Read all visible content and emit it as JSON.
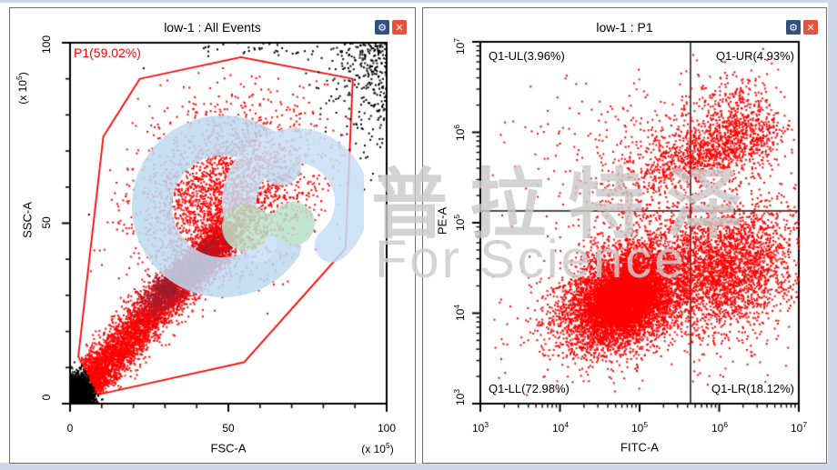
{
  "window": {
    "chrome_color": "#cdd8e9",
    "panel_bg": "#ffffff"
  },
  "icons": {
    "settings_glyph": "⚙",
    "close_glyph": "✕",
    "settings_bg": "#31507c",
    "close_bg": "#e8513e"
  },
  "watermark": {
    "cjk": "普拉特泽",
    "latin": "For Science",
    "text_color": "#c9c9c9",
    "logo_blue": "#bedaf1",
    "logo_green": "#b9e2cb"
  },
  "chart_data": [
    {
      "type": "scatter",
      "title": "low-1 : All Events",
      "xlabel": "FSC-A",
      "ylabel": "SSC-A",
      "x_unit": {
        "pre": "(x 10",
        "exp": "5",
        "post": ")"
      },
      "y_unit": {
        "pre": "(x 10",
        "exp": "5",
        "post": ")"
      },
      "scale": "linear",
      "xlim": [
        0,
        100
      ],
      "ylim": [
        0,
        100
      ],
      "xticks": [
        0,
        50,
        100
      ],
      "yticks": [
        0,
        50,
        100
      ],
      "xtick_labels": [
        "0",
        "50",
        "100"
      ],
      "ytick_labels": [
        "0",
        "50",
        "100"
      ],
      "minor_tick_step": 10,
      "grid": false,
      "dot_colors": {
        "gated": "#ff0000",
        "ungated": "#000000"
      },
      "gate": {
        "name": "P1",
        "label": "P1(59.02%)",
        "percent": 59.02,
        "color": "#fe0000",
        "polygon": [
          [
            54,
            96
          ],
          [
            22,
            90
          ],
          [
            10.5,
            74
          ],
          [
            2.6,
            13
          ],
          [
            8.8,
            2.5
          ],
          [
            55,
            11.5
          ],
          [
            87,
            43
          ],
          [
            89.3,
            90
          ]
        ]
      },
      "populations": [
        {
          "type": "gauss",
          "n": 2300,
          "cx": 2.2,
          "cy": 2.2,
          "sx": 2.7,
          "sy": 3.0,
          "rho": 0.25,
          "mode": "abs",
          "color": "#000000",
          "gate_rule": "recolor"
        },
        {
          "type": "gauss",
          "n": 280,
          "cx": 99,
          "cy": 97,
          "sx": 9,
          "sy": 14,
          "rho": 0,
          "mode": "reflect_high",
          "color": "#000000"
        },
        {
          "type": "uniform",
          "n": 55,
          "x0": 40,
          "x1": 100,
          "y0": 96,
          "y1": 100,
          "color": "#000000"
        },
        {
          "type": "uniform",
          "n": 20,
          "x0": 5,
          "x1": 60,
          "y0": 50,
          "y1": 95,
          "color": "#000000",
          "gate_rule": "skip_inside"
        },
        {
          "type": "band",
          "n": 5200,
          "from": [
            4,
            4
          ],
          "to": [
            51,
            49
          ],
          "sigma": 3.0,
          "bias": 1.25,
          "color": "#ff0000",
          "gate_rule": "clip"
        },
        {
          "type": "band",
          "n": 1500,
          "from": [
            26,
            28
          ],
          "to": [
            50,
            46
          ],
          "sigma": 2.4,
          "bias": 1,
          "color": "#9c1f2e",
          "gate_rule": "clip"
        },
        {
          "type": "gauss",
          "n": 2400,
          "cx": 50,
          "cy": 57,
          "sx": 13,
          "sy": 11,
          "rho": 0.3,
          "color": "#ff0000",
          "gate_rule": "clip"
        },
        {
          "type": "gauss",
          "n": 380,
          "cx": 47,
          "cy": 66,
          "sx": 19,
          "sy": 15,
          "rho": 0.2,
          "color": "#ff0000",
          "gate_rule": "clip"
        }
      ]
    },
    {
      "type": "scatter",
      "title": "low-1 : P1",
      "xlabel": "FITC-A",
      "ylabel": "PE-A",
      "scale": "log",
      "lim_log": [
        3,
        7
      ],
      "xtick_labels": [
        {
          "b": "10",
          "e": "3"
        },
        {
          "b": "10",
          "e": "4"
        },
        {
          "b": "10",
          "e": "5"
        },
        {
          "b": "10",
          "e": "6"
        },
        {
          "b": "10",
          "e": "7"
        }
      ],
      "ytick_labels": [
        {
          "b": "10",
          "e": "3"
        },
        {
          "b": "10",
          "e": "4"
        },
        {
          "b": "10",
          "e": "5"
        },
        {
          "b": "10",
          "e": "6"
        },
        {
          "b": "10",
          "e": "7"
        }
      ],
      "grid": false,
      "dot_colors": {
        "gated": "#ff0000"
      },
      "quadrant_gate": {
        "x_log": 5.64,
        "y_log": 5.13,
        "quadrants": [
          {
            "name": "Q1-UL",
            "label": "Q1-UL(3.96%)",
            "percent": 3.96
          },
          {
            "name": "Q1-UR",
            "label": "Q1-UR(4.93%)",
            "percent": 4.93
          },
          {
            "name": "Q1-LL",
            "label": "Q1-LL(72.98%)",
            "percent": 72.98
          },
          {
            "name": "Q1-LR",
            "label": "Q1-LR(18.12%)",
            "percent": 18.12
          }
        ]
      },
      "populations": [
        {
          "type": "gauss",
          "n": 6000,
          "cx": 4.82,
          "cy": 4.18,
          "sx": 0.4,
          "sy": 0.3,
          "rho": 0.35,
          "color": "#ff0000"
        },
        {
          "type": "gauss",
          "n": 3000,
          "cx": 4.78,
          "cy": 4.12,
          "sx": 0.22,
          "sy": 0.17,
          "rho": 0.3,
          "color": "#ff0000"
        },
        {
          "type": "gauss",
          "n": 2600,
          "cx": 6.15,
          "cy": 4.5,
          "sx": 0.4,
          "sy": 0.35,
          "rho": 0.25,
          "color": "#ff0000"
        },
        {
          "type": "band",
          "n": 1100,
          "from": [
            4.85,
            5.45
          ],
          "to": [
            6.55,
            6.0
          ],
          "sigma": 0.17,
          "bias": 0.55,
          "color": "#ff0000"
        },
        {
          "type": "gauss",
          "n": 260,
          "cx": 6.15,
          "cy": 6.22,
          "sx": 0.26,
          "sy": 0.24,
          "rho": 0.3,
          "color": "#ff0000"
        },
        {
          "type": "gauss",
          "n": 200,
          "cx": 5.6,
          "cy": 6.0,
          "sx": 0.42,
          "sy": 0.3,
          "rho": 0.2,
          "color": "#ff0000"
        },
        {
          "type": "gauss",
          "n": 600,
          "cx": 5.3,
          "cy": 5.0,
          "sx": 0.55,
          "sy": 0.45,
          "rho": 0.2,
          "color": "#ff0000"
        },
        {
          "type": "gauss",
          "n": 90,
          "cx": 4.6,
          "cy": 5.65,
          "sx": 0.5,
          "sy": 0.35,
          "rho": 0,
          "color": "#ff0000"
        },
        {
          "type": "uniform",
          "n": 220,
          "x0": 3.15,
          "x1": 6.9,
          "y0": 3.1,
          "y1": 6.7,
          "color": "#ff0000"
        }
      ]
    }
  ]
}
